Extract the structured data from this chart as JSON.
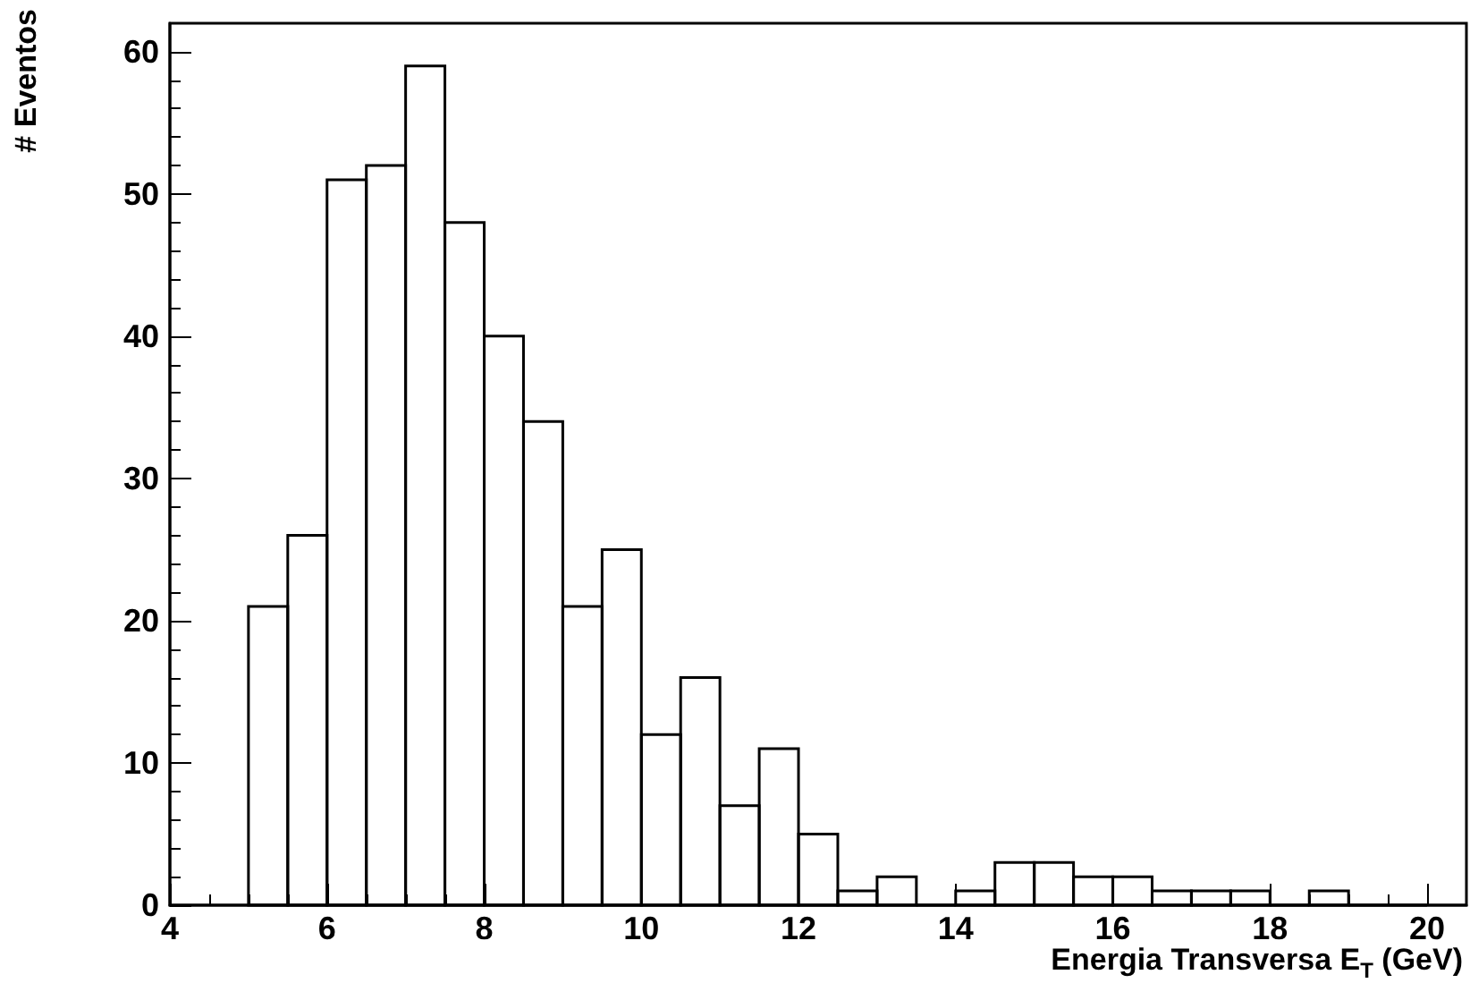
{
  "chart_data": {
    "type": "histogram",
    "xlabel": "Energia Transversa E$_{T}$ (GeV)",
    "ylabel": "# Eventos",
    "bins": [
      5,
      5.5,
      6,
      6.5,
      7,
      7.5,
      8,
      8.5,
      9,
      9.5,
      10,
      10.5,
      11,
      11.5,
      12,
      12.5,
      13,
      13.5,
      14,
      14.5,
      15,
      15.5,
      16,
      16.5,
      17,
      17.5,
      18,
      18.5,
      19,
      19.5,
      20
    ],
    "values": [
      21,
      26,
      51,
      52,
      59,
      48,
      40,
      34,
      21,
      25,
      12,
      16,
      7,
      11,
      5,
      1,
      2,
      0,
      1,
      3,
      3,
      2,
      2,
      1,
      1,
      1,
      0,
      1,
      0,
      0
    ],
    "color": "#000000",
    "xlim": [
      4,
      20.5
    ],
    "xticks": [
      4,
      6,
      8,
      10,
      12,
      14,
      16,
      18,
      20
    ],
    "ylim": [
      0,
      62
    ],
    "yticks": [
      0,
      10,
      20,
      30,
      40,
      50,
      60
    ],
    "grid": false
  }
}
